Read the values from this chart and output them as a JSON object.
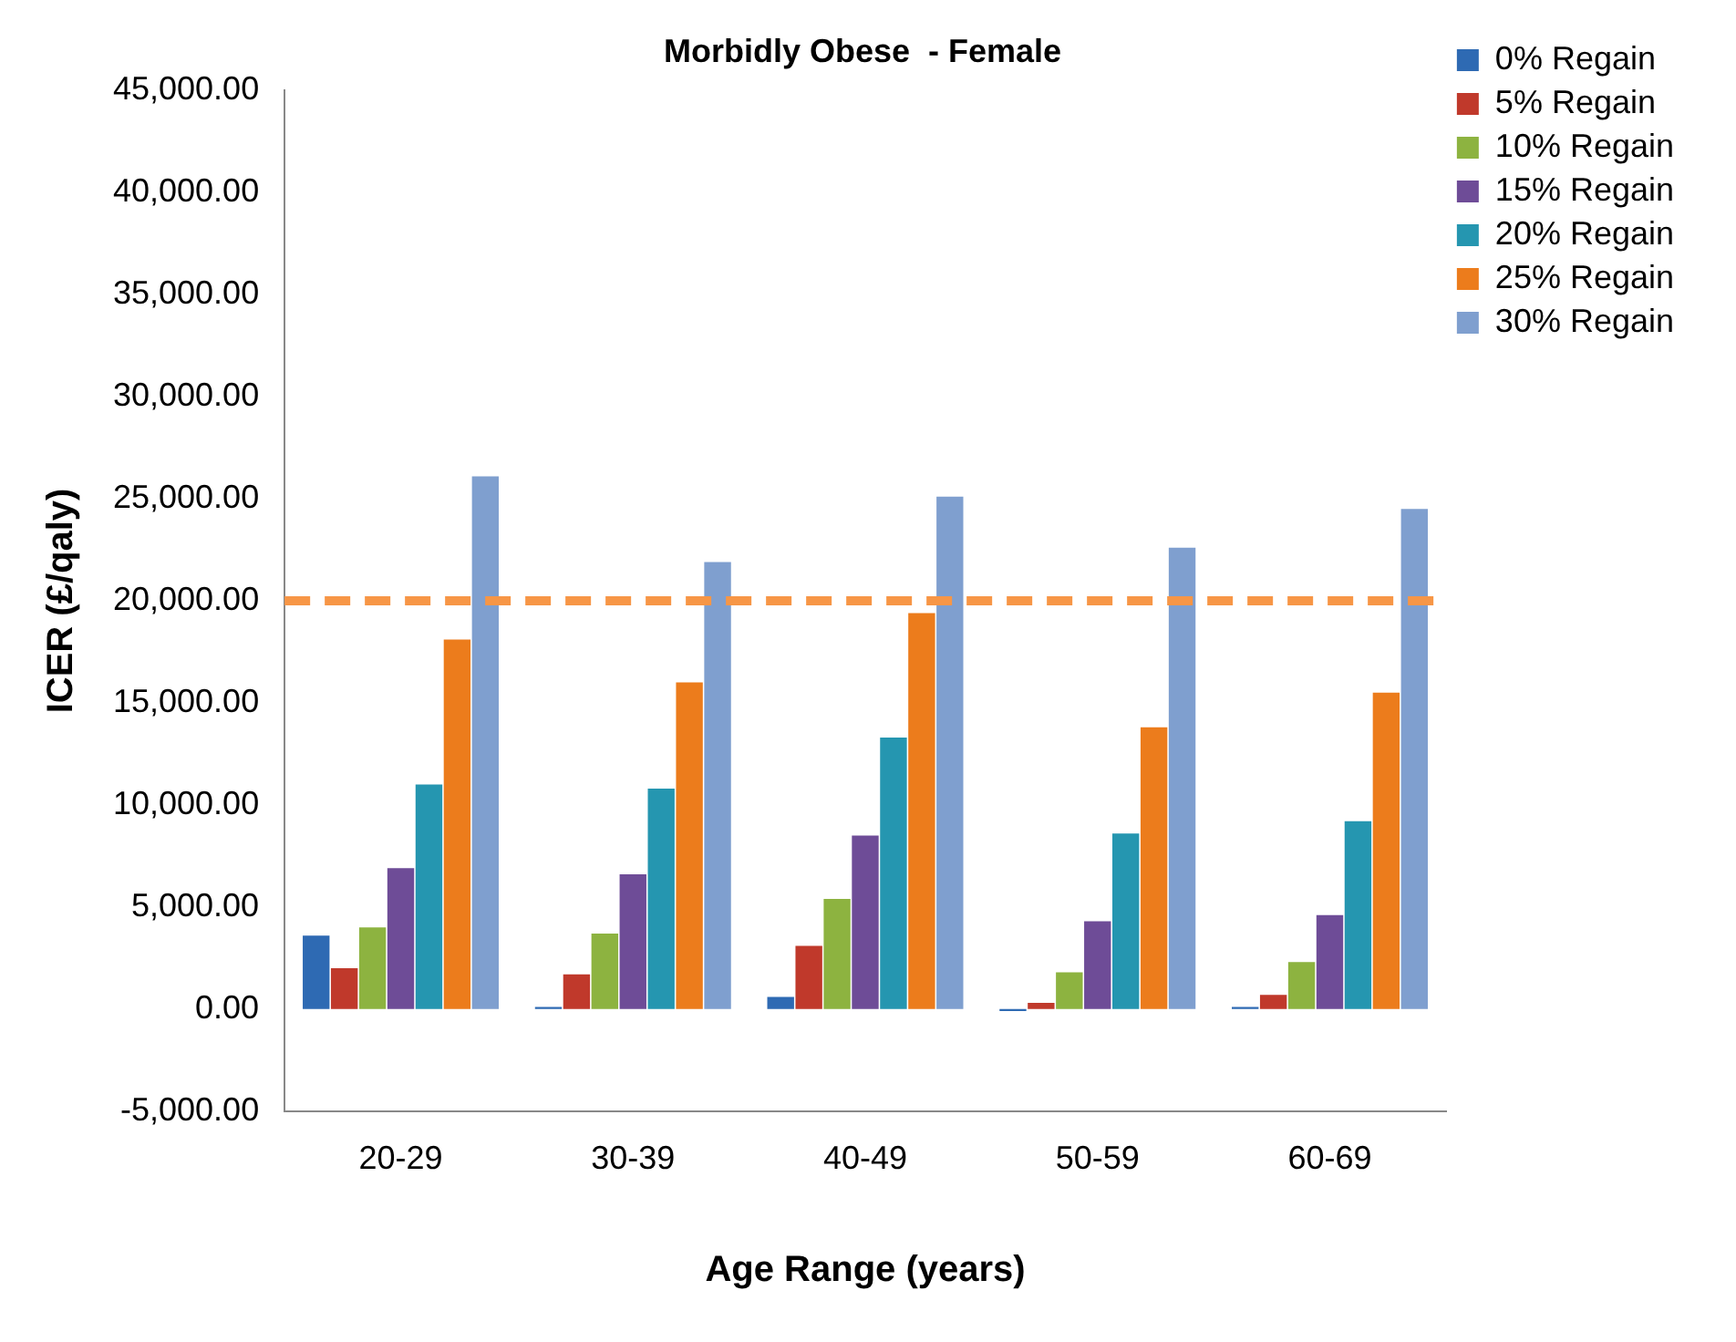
{
  "chart_data": {
    "type": "bar",
    "title": "Morbidly Obese  - Female",
    "xlabel": "Age Range (years)",
    "ylabel": "ICER (£/qaly)",
    "categories": [
      "20-29",
      "30-39",
      "40-49",
      "50-59",
      "60-69"
    ],
    "series": [
      {
        "name": "0% Regain",
        "color": "#2e6ab3",
        "values": [
          3600,
          100,
          600,
          -100,
          100
        ]
      },
      {
        "name": "5% Regain",
        "color": "#c0392b",
        "values": [
          2000,
          1700,
          3100,
          300,
          700
        ]
      },
      {
        "name": "10% Regain",
        "color": "#8db340",
        "values": [
          4000,
          3700,
          5400,
          1800,
          2300
        ]
      },
      {
        "name": "15% Regain",
        "color": "#6e4c97",
        "values": [
          6900,
          6600,
          8500,
          4300,
          4600
        ]
      },
      {
        "name": "20% Regain",
        "color": "#2596b0",
        "values": [
          11000,
          10800,
          13300,
          8600,
          9200
        ]
      },
      {
        "name": "25% Regain",
        "color": "#ec7c1c",
        "values": [
          18100,
          16000,
          19400,
          13800,
          15500
        ]
      },
      {
        "name": "30% Regain",
        "color": "#7f9fcf",
        "values": [
          26100,
          21900,
          25100,
          22600,
          24500
        ]
      }
    ],
    "ylim": [
      -5000,
      45000
    ],
    "yticks": [
      {
        "value": -5000,
        "label": "-5,000.00"
      },
      {
        "value": 0,
        "label": "0.00"
      },
      {
        "value": 5000,
        "label": "5,000.00"
      },
      {
        "value": 10000,
        "label": "10,000.00"
      },
      {
        "value": 15000,
        "label": "15,000.00"
      },
      {
        "value": 20000,
        "label": "20,000.00"
      },
      {
        "value": 25000,
        "label": "25,000.00"
      },
      {
        "value": 30000,
        "label": "30,000.00"
      },
      {
        "value": 35000,
        "label": "35,000.00"
      },
      {
        "value": 40000,
        "label": "40,000.00"
      },
      {
        "value": 45000,
        "label": "45,000.00"
      }
    ],
    "ref_lines": [
      {
        "axis": "y",
        "value": 20000,
        "color": "#f79646",
        "line_style": "dashed"
      }
    ],
    "grid": false,
    "legend": "top right"
  }
}
